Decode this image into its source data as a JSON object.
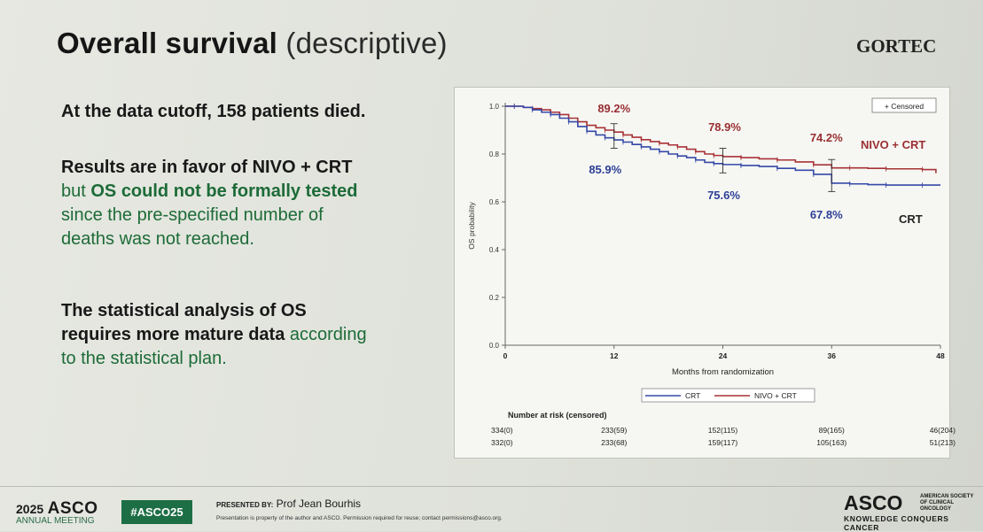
{
  "slide": {
    "title_bold": "Overall survival",
    "title_light": "(descriptive)",
    "logo": "GORTEC",
    "line1": "At the data cutoff, 158 patients died.",
    "p2_bold": "Results are in favor of NIVO + CRT",
    "p2_l2a": "but ",
    "p2_l2b": "OS could not be formally tested",
    "p2_l3": "since the pre-specified number of",
    "p2_l4": "deaths was not reached.",
    "p3_l1": "The statistical analysis of OS",
    "p3_l2a": "requires more mature data ",
    "p3_l2b": "according",
    "p3_l3": "to the statistical plan."
  },
  "chart_data": {
    "type": "line",
    "title": "",
    "xlabel": "Months from randomization",
    "ylabel": "OS probability",
    "xlim": [
      0,
      48
    ],
    "ylim": [
      0,
      1.0
    ],
    "xticks": [
      "0",
      "12",
      "24",
      "36",
      "48"
    ],
    "yticks": [
      "0.0",
      "0.2",
      "0.4",
      "0.6",
      "0.8",
      "1.0"
    ],
    "legend_censored": "+ Censored",
    "legend_bottom": [
      "CRT",
      "NIVO + CRT"
    ],
    "series": [
      {
        "name": "NIVO + CRT",
        "color": "#a83236",
        "x": [
          0,
          1,
          2,
          3,
          4,
          5,
          6,
          7,
          8,
          9,
          10,
          11,
          12,
          13,
          14,
          15,
          16,
          17,
          18,
          19,
          20,
          21,
          22,
          23,
          24,
          26,
          28,
          30,
          32,
          34,
          36,
          38,
          40,
          42,
          44,
          46,
          47.5
        ],
        "y": [
          1.0,
          1.0,
          0.995,
          0.99,
          0.985,
          0.975,
          0.965,
          0.95,
          0.935,
          0.92,
          0.91,
          0.9,
          0.892,
          0.88,
          0.87,
          0.86,
          0.852,
          0.845,
          0.838,
          0.83,
          0.82,
          0.81,
          0.8,
          0.794,
          0.789,
          0.785,
          0.78,
          0.775,
          0.767,
          0.755,
          0.742,
          0.742,
          0.74,
          0.738,
          0.738,
          0.735,
          0.72
        ]
      },
      {
        "name": "CRT",
        "color": "#3548a8",
        "x": [
          0,
          1,
          2,
          3,
          4,
          5,
          6,
          7,
          8,
          9,
          10,
          11,
          12,
          13,
          14,
          15,
          16,
          17,
          18,
          19,
          20,
          21,
          22,
          23,
          24,
          26,
          28,
          30,
          32,
          34,
          36,
          38,
          40,
          42,
          44,
          46,
          48
        ],
        "y": [
          1.0,
          1.0,
          0.995,
          0.985,
          0.975,
          0.965,
          0.95,
          0.935,
          0.915,
          0.895,
          0.88,
          0.868,
          0.859,
          0.85,
          0.84,
          0.83,
          0.82,
          0.81,
          0.8,
          0.792,
          0.785,
          0.775,
          0.765,
          0.76,
          0.756,
          0.752,
          0.748,
          0.74,
          0.732,
          0.715,
          0.678,
          0.675,
          0.672,
          0.67,
          0.67,
          0.67,
          0.67
        ]
      }
    ],
    "annotations": {
      "nivo": [
        {
          "x": 12,
          "text": "89.2%"
        },
        {
          "x": 24,
          "text": "78.9%"
        },
        {
          "x": 36,
          "text": "74.2%"
        }
      ],
      "crt": [
        {
          "x": 12,
          "text": "85.9%"
        },
        {
          "x": 24,
          "text": "75.6%"
        },
        {
          "x": 36,
          "text": "67.8%"
        }
      ],
      "nivo_label": "NIVO + CRT",
      "crt_label": "CRT"
    },
    "risk_table": {
      "title": "Number at risk (censored)",
      "rows": [
        [
          "334(0)",
          "233(59)",
          "152(115)",
          "89(165)",
          "46(204)"
        ],
        [
          "332(0)",
          "233(68)",
          "159(117)",
          "105(163)",
          "51(213)"
        ]
      ]
    }
  },
  "footer": {
    "year": "2025",
    "asco": "ASCO",
    "meeting": "ANNUAL MEETING",
    "hashtag": "#ASCO25",
    "presented_label": "PRESENTED BY:",
    "presenter": "Prof Jean Bourhis",
    "disclaimer": "Presentation is property of the author and ASCO. Permission required for reuse; contact permissions@asco.org.",
    "asco_right": "ASCO",
    "society": "AMERICAN SOCIETY OF CLINICAL ONCOLOGY",
    "tagline": "KNOWLEDGE CONQUERS CANCER"
  }
}
